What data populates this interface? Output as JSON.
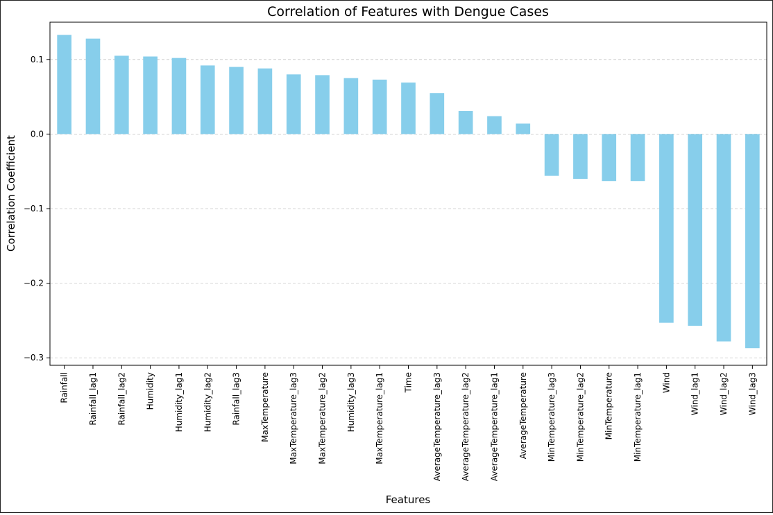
{
  "chart_data": {
    "type": "bar",
    "title": "Correlation of Features with Dengue Cases",
    "xlabel": "Features",
    "ylabel": "Correlation Coefficient",
    "ylim": [
      -0.31,
      0.15
    ],
    "yticks": [
      0.1,
      0.0,
      -0.1,
      -0.2,
      -0.3
    ],
    "ytick_labels": [
      "0.1",
      "0.0",
      "−0.1",
      "−0.2",
      "−0.3"
    ],
    "grid": "y-dashed",
    "bar_color": "#87ceeb",
    "categories": [
      "Rainfall",
      "Rainfall_lag1",
      "Rainfall_lag2",
      "Humidity",
      "Humidity_lag1",
      "Humidity_lag2",
      "Rainfall_lag3",
      "MaxTemperature",
      "MaxTemperature_lag3",
      "MaxTemperature_lag2",
      "Humidity_lag3",
      "MaxTemperature_lag1",
      "Time",
      "AverageTemperature_lag3",
      "AverageTemperature_lag2",
      "AverageTemperature_lag1",
      "AverageTemperature",
      "MinTemperature_lag3",
      "MinTemperature_lag2",
      "MinTemperature",
      "MinTemperature_lag1",
      "Wind",
      "Wind_lag1",
      "Wind_lag2",
      "Wind_lag3"
    ],
    "values": [
      0.133,
      0.128,
      0.105,
      0.104,
      0.102,
      0.092,
      0.09,
      0.088,
      0.08,
      0.079,
      0.075,
      0.073,
      0.069,
      0.055,
      0.031,
      0.024,
      0.014,
      -0.056,
      -0.06,
      -0.063,
      -0.063,
      -0.253,
      -0.257,
      -0.278,
      -0.287
    ]
  }
}
